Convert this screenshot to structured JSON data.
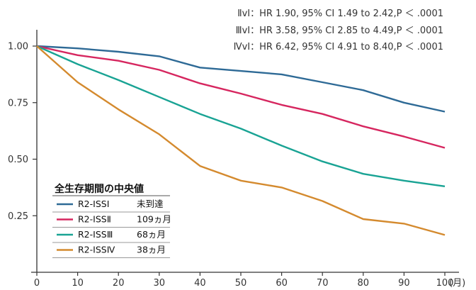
{
  "chart_data": {
    "type": "line",
    "x_unit_label": "(月)",
    "ylim": [
      0,
      1.0
    ],
    "xlim": [
      0,
      100
    ],
    "x_ticks": [
      0,
      10,
      20,
      30,
      40,
      50,
      60,
      70,
      80,
      90,
      100
    ],
    "y_ticks": [
      {
        "value": 0.25,
        "label": "0.25"
      },
      {
        "value": 0.5,
        "label": "0.50"
      },
      {
        "value": 0.75,
        "label": "0.75"
      },
      {
        "value": 1.0,
        "label": "1.00"
      }
    ],
    "annotations": [
      "ⅡvⅠ：HR 1.90, 95% CI 1.49 to 2.42,P ＜ .0001",
      "ⅢvⅠ：HR 3.58, 95% CI 2.85 to 4.49,P ＜ .0001",
      "ⅣvⅠ：HR 6.42, 95% CI 4.91 to 8.40,P ＜ .0001"
    ],
    "legend": {
      "title": "全生存期間の中央値",
      "placement": "lower-left",
      "entries": [
        {
          "name": "R2-ISSⅠ",
          "median": "未到達"
        },
        {
          "name": "R2-ISSⅡ",
          "median": "109ヵ月"
        },
        {
          "name": "R2-ISSⅢ",
          "median": "68ヵ月"
        },
        {
          "name": "R2-ISSⅣ",
          "median": "38ヵ月"
        }
      ]
    },
    "x": [
      0,
      10,
      20,
      30,
      40,
      50,
      60,
      70,
      80,
      90,
      100
    ],
    "series": [
      {
        "name": "R2-ISSⅠ",
        "color": "#2e6a96",
        "values": [
          1.0,
          0.99,
          0.975,
          0.955,
          0.905,
          0.89,
          0.875,
          0.84,
          0.805,
          0.75,
          0.71
        ]
      },
      {
        "name": "R2-ISSⅡ",
        "color": "#d6265f",
        "values": [
          1.0,
          0.96,
          0.935,
          0.895,
          0.835,
          0.79,
          0.74,
          0.7,
          0.645,
          0.6,
          0.55
        ]
      },
      {
        "name": "R2-ISSⅢ",
        "color": "#19a394",
        "values": [
          1.0,
          0.92,
          0.85,
          0.775,
          0.7,
          0.635,
          0.56,
          0.49,
          0.435,
          0.405,
          0.38
        ]
      },
      {
        "name": "R2-ISSⅣ",
        "color": "#d48a2e",
        "values": [
          1.0,
          0.84,
          0.72,
          0.61,
          0.47,
          0.405,
          0.375,
          0.315,
          0.235,
          0.215,
          0.165
        ]
      }
    ]
  }
}
